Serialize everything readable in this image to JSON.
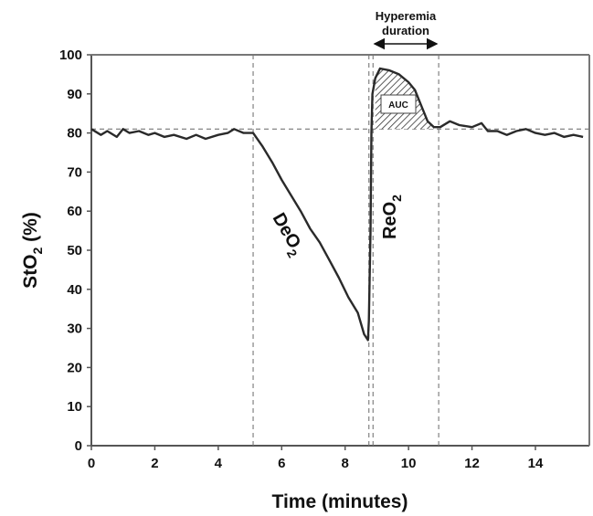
{
  "chart_data": {
    "type": "line",
    "xlabel": "Time (minutes)",
    "ylabel": {
      "base": "StO",
      "sub": "2",
      "tail": " (%)"
    },
    "xlim": [
      0,
      15.7
    ],
    "ylim": [
      0,
      100
    ],
    "x_ticks": [
      "0",
      "2",
      "4",
      "6",
      "8",
      "10",
      "12",
      "14"
    ],
    "y_ticks": [
      "0",
      "10",
      "20",
      "30",
      "40",
      "50",
      "60",
      "70",
      "80",
      "90",
      "100"
    ],
    "baseline": 81,
    "vertical_markers": [
      5.1,
      8.75,
      8.88,
      10.95
    ],
    "series": [
      {
        "values": [
          [
            0,
            81
          ],
          [
            0.3,
            79.5
          ],
          [
            0.5,
            80.5
          ],
          [
            0.8,
            79
          ],
          [
            1.0,
            81
          ],
          [
            1.2,
            80
          ],
          [
            1.5,
            80.5
          ],
          [
            1.8,
            79.5
          ],
          [
            2.0,
            80
          ],
          [
            2.3,
            79
          ],
          [
            2.6,
            79.5
          ],
          [
            3.0,
            78.5
          ],
          [
            3.3,
            79.5
          ],
          [
            3.6,
            78.5
          ],
          [
            4.0,
            79.5
          ],
          [
            4.3,
            80
          ],
          [
            4.5,
            81
          ],
          [
            4.8,
            80
          ],
          [
            5.1,
            80
          ],
          [
            5.4,
            76.5
          ],
          [
            5.7,
            72.5
          ],
          [
            6.0,
            68
          ],
          [
            6.3,
            64
          ],
          [
            6.6,
            60
          ],
          [
            6.9,
            55.5
          ],
          [
            7.2,
            52
          ],
          [
            7.5,
            47.5
          ],
          [
            7.8,
            43
          ],
          [
            8.1,
            38
          ],
          [
            8.4,
            34
          ],
          [
            8.6,
            28.5
          ],
          [
            8.72,
            27
          ],
          [
            8.75,
            32
          ],
          [
            8.8,
            55
          ],
          [
            8.83,
            80
          ],
          [
            8.86,
            90
          ],
          [
            8.95,
            94
          ],
          [
            9.1,
            96.5
          ],
          [
            9.4,
            96
          ],
          [
            9.7,
            95
          ],
          [
            10.0,
            93
          ],
          [
            10.2,
            91
          ],
          [
            10.4,
            87
          ],
          [
            10.6,
            83
          ],
          [
            10.8,
            81.5
          ],
          [
            11.0,
            81.5
          ],
          [
            11.3,
            83
          ],
          [
            11.6,
            82
          ],
          [
            12.0,
            81.5
          ],
          [
            12.3,
            82.5
          ],
          [
            12.5,
            80.5
          ],
          [
            12.8,
            80.5
          ],
          [
            13.1,
            79.5
          ],
          [
            13.4,
            80.5
          ],
          [
            13.7,
            81
          ],
          [
            14.0,
            80
          ],
          [
            14.3,
            79.5
          ],
          [
            14.6,
            80
          ],
          [
            14.9,
            79
          ],
          [
            15.2,
            79.5
          ],
          [
            15.5,
            79
          ]
        ]
      }
    ],
    "annotations": {
      "deo2": {
        "base": "DeO",
        "sub": "2"
      },
      "reo2": {
        "base": "ReO",
        "sub": "2"
      },
      "auc": "AUC",
      "hyperemia_line1": "Hyperemia",
      "hyperemia_line2": "duration"
    }
  }
}
